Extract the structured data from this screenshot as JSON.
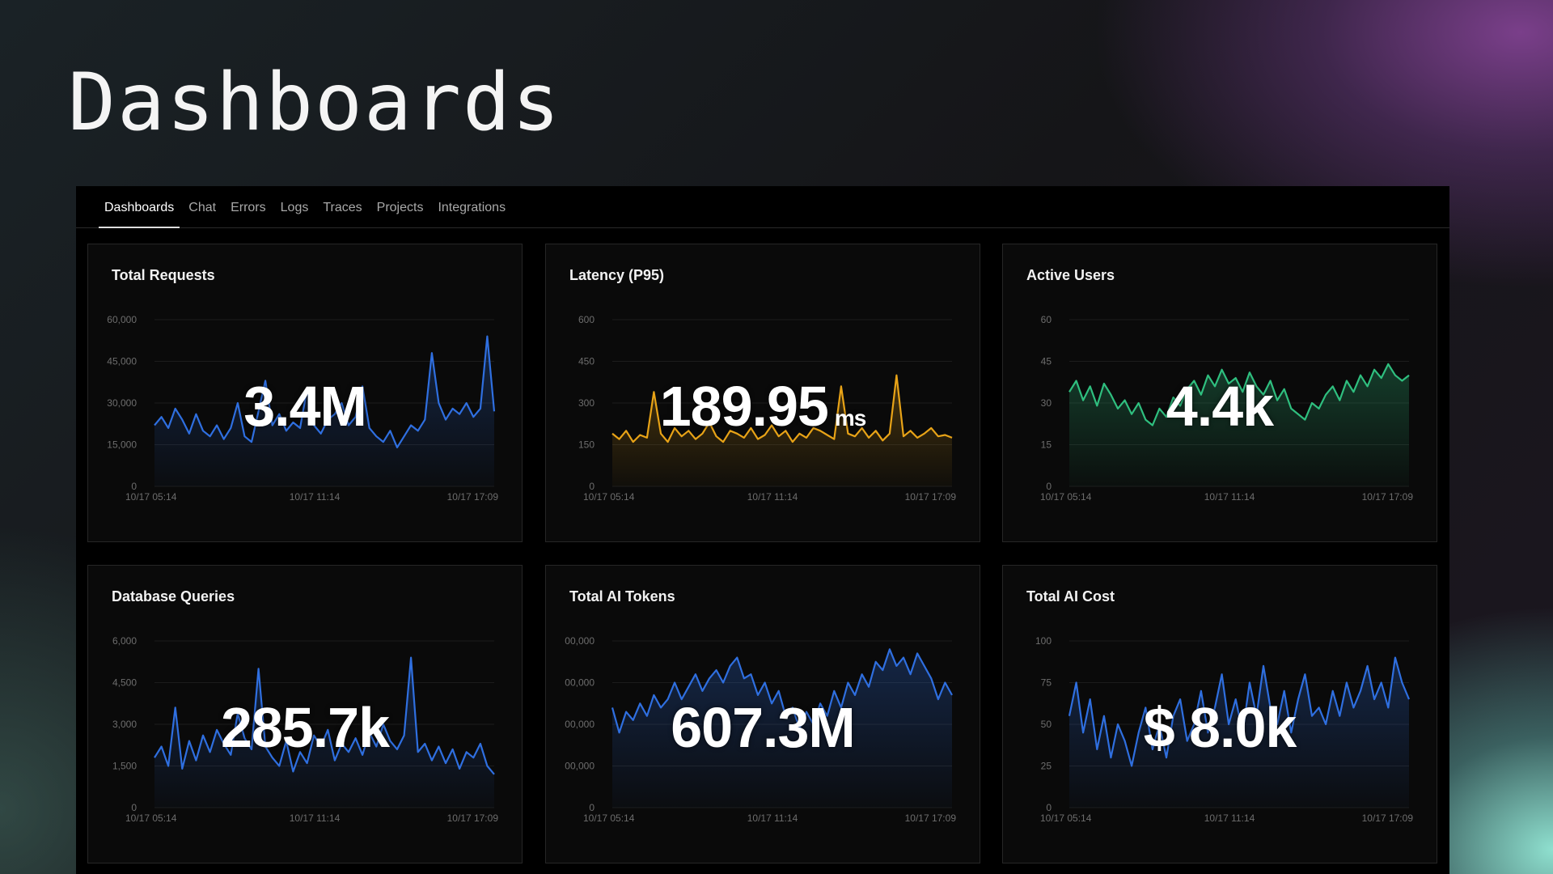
{
  "page_title": "Dashboards",
  "nav": {
    "tabs": [
      {
        "label": "Dashboards",
        "active": true
      },
      {
        "label": "Chat"
      },
      {
        "label": "Errors"
      },
      {
        "label": "Logs"
      },
      {
        "label": "Traces"
      },
      {
        "label": "Projects"
      },
      {
        "label": "Integrations"
      }
    ]
  },
  "colors": {
    "blue": "#2f6fe0",
    "orange": "#e8a317",
    "green": "#2fbf7f"
  },
  "chart_data": [
    {
      "type": "area",
      "title": "Total Requests",
      "headline": "3.4M",
      "unit": "",
      "color": "#2f6fe0",
      "ylim": [
        0,
        60000
      ],
      "yticks": [
        "0",
        "15,000",
        "30,000",
        "45,000",
        "60,000"
      ],
      "xticks": [
        "10/17 05:14",
        "10/17 11:14",
        "10/17 17:09"
      ],
      "grid": true,
      "values": [
        22000,
        25000,
        21000,
        28000,
        24000,
        19000,
        26000,
        20000,
        18000,
        22000,
        17000,
        21000,
        30000,
        18000,
        16000,
        27000,
        38000,
        22000,
        26000,
        20000,
        23000,
        21000,
        35000,
        22000,
        19000,
        24000,
        26000,
        30000,
        22000,
        25000,
        36000,
        21000,
        18000,
        16000,
        20000,
        14000,
        18000,
        22000,
        20000,
        24000,
        48000,
        30000,
        24000,
        28000,
        26000,
        30000,
        25000,
        28000,
        54000,
        27000
      ]
    },
    {
      "type": "area",
      "title": "Latency (P95)",
      "headline": "189.95",
      "unit": "ms",
      "color": "#e8a317",
      "ylim": [
        0,
        600
      ],
      "yticks": [
        "0",
        "150",
        "300",
        "450",
        "600"
      ],
      "xticks": [
        "10/17 05:14",
        "10/17 11:14",
        "10/17 17:09"
      ],
      "grid": true,
      "values": [
        190,
        170,
        200,
        160,
        185,
        175,
        340,
        190,
        160,
        210,
        180,
        200,
        170,
        190,
        230,
        180,
        160,
        200,
        190,
        175,
        210,
        170,
        185,
        220,
        180,
        200,
        160,
        190,
        175,
        210,
        200,
        185,
        170,
        360,
        190,
        180,
        210,
        175,
        200,
        165,
        190,
        400,
        180,
        200,
        175,
        190,
        210,
        180,
        185,
        175
      ]
    },
    {
      "type": "area",
      "title": "Active Users",
      "headline": "4.4k",
      "unit": "",
      "color": "#2fbf7f",
      "ylim": [
        0,
        60
      ],
      "yticks": [
        "0",
        "15",
        "30",
        "45",
        "60"
      ],
      "xticks": [
        "10/17 05:14",
        "10/17 11:14",
        "10/17 17:09"
      ],
      "grid": true,
      "values": [
        34,
        38,
        31,
        36,
        29,
        37,
        33,
        28,
        31,
        26,
        30,
        24,
        22,
        28,
        25,
        32,
        29,
        35,
        38,
        33,
        40,
        36,
        42,
        37,
        39,
        34,
        41,
        36,
        33,
        38,
        31,
        35,
        28,
        26,
        24,
        30,
        28,
        33,
        36,
        31,
        38,
        34,
        40,
        36,
        42,
        39,
        44,
        40,
        38,
        40
      ]
    },
    {
      "type": "area",
      "title": "Database Queries",
      "headline": "285.7k",
      "unit": "",
      "color": "#2f6fe0",
      "ylim": [
        0,
        6000
      ],
      "yticks": [
        "0",
        "1,500",
        "3,000",
        "4,500",
        "6,000"
      ],
      "xticks": [
        "10/17 05:14",
        "10/17 11:14",
        "10/17 17:09"
      ],
      "grid": true,
      "values": [
        1800,
        2200,
        1500,
        3600,
        1400,
        2400,
        1700,
        2600,
        2000,
        2800,
        2300,
        1900,
        3400,
        2500,
        2100,
        5000,
        2200,
        1800,
        1500,
        2400,
        1300,
        2000,
        1600,
        2600,
        2200,
        2800,
        1700,
        2300,
        2000,
        2500,
        1900,
        2700,
        2200,
        3000,
        2400,
        2100,
        2600,
        5400,
        2000,
        2300,
        1700,
        2200,
        1600,
        2100,
        1400,
        2000,
        1800,
        2300,
        1500,
        1200
      ]
    },
    {
      "type": "area",
      "title": "Total AI Tokens",
      "headline": "607.3M",
      "unit": "",
      "color": "#2f6fe0",
      "ylim": [
        0,
        4
      ],
      "yticks": [
        "0",
        "00,000",
        "00,000",
        "00,000",
        "00,000"
      ],
      "xticks": [
        "10/17 05:14",
        "10/17 11:14",
        "10/17 17:09"
      ],
      "grid": true,
      "values": [
        2.4,
        1.8,
        2.3,
        2.1,
        2.5,
        2.2,
        2.7,
        2.4,
        2.6,
        3.0,
        2.6,
        2.9,
        3.2,
        2.8,
        3.1,
        3.3,
        3.0,
        3.4,
        3.6,
        3.1,
        3.2,
        2.7,
        3.0,
        2.5,
        2.8,
        2.2,
        2.4,
        1.9,
        2.3,
        2.0,
        2.5,
        2.2,
        2.8,
        2.4,
        3.0,
        2.7,
        3.2,
        2.9,
        3.5,
        3.3,
        3.8,
        3.4,
        3.6,
        3.2,
        3.7,
        3.4,
        3.1,
        2.6,
        3.0,
        2.7
      ]
    },
    {
      "type": "area",
      "title": "Total AI Cost",
      "headline": "$ 8.0k",
      "unit": "",
      "color": "#2f6fe0",
      "ylim": [
        0,
        100
      ],
      "yticks": [
        "0",
        "25",
        "50",
        "75",
        "100"
      ],
      "xticks": [
        "10/17 05:14",
        "10/17 11:14",
        "10/17 17:09"
      ],
      "grid": true,
      "values": [
        55,
        75,
        45,
        65,
        35,
        55,
        30,
        50,
        40,
        25,
        45,
        60,
        35,
        50,
        30,
        55,
        65,
        40,
        50,
        70,
        45,
        60,
        80,
        50,
        65,
        45,
        75,
        55,
        85,
        60,
        50,
        70,
        45,
        65,
        80,
        55,
        60,
        50,
        70,
        55,
        75,
        60,
        70,
        85,
        65,
        75,
        60,
        90,
        75,
        65
      ]
    }
  ]
}
